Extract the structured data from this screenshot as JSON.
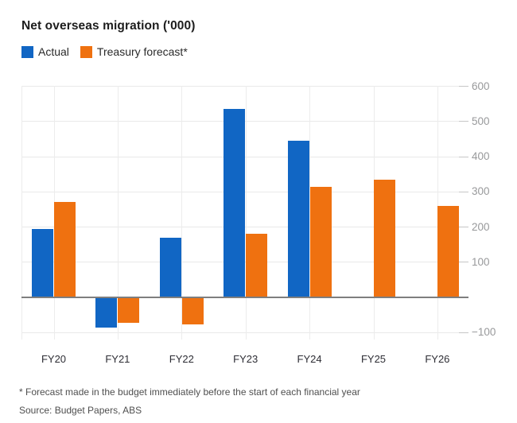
{
  "title": "Net overseas migration ('000)",
  "legend": [
    {
      "label": "Actual",
      "color": "#1166c4"
    },
    {
      "label": "Treasury forecast*",
      "color": "#ef7110"
    }
  ],
  "footnote": "* Forecast made in the budget immediately before the start of each financial year",
  "source": "Source: Budget Papers, ABS",
  "colors": {
    "actual_blue": "#1166c4",
    "forecast_orange": "#ef7110",
    "gridline": "#e9e9e9",
    "zero_line": "#7e7e7e",
    "y_tick_label": "#98999b",
    "x_label": "#2d2d34"
  },
  "chart_data": {
    "type": "bar",
    "title": "Net overseas migration ('000)",
    "categories": [
      "FY20",
      "FY21",
      "FY22",
      "FY23",
      "FY24",
      "FY25",
      "FY26"
    ],
    "series": [
      {
        "name": "Actual",
        "color": "#1166c4",
        "values": [
          194,
          -85,
          170,
          536,
          446,
          null,
          null
        ]
      },
      {
        "name": "Treasury forecast*",
        "color": "#ef7110",
        "values": [
          271,
          -72,
          -77,
          180,
          315,
          335,
          260
        ]
      }
    ],
    "xlabel": "",
    "ylabel": "",
    "ylim": [
      -100,
      600
    ],
    "yticks": [
      600,
      500,
      400,
      300,
      200,
      100,
      -100
    ],
    "zero_tick_label_shown": false,
    "grid": true,
    "axis_side": "right",
    "legend_position": "top-left",
    "footnote": "* Forecast made in the budget immediately before the start of each financial year",
    "source": "Source: Budget Papers, ABS"
  }
}
